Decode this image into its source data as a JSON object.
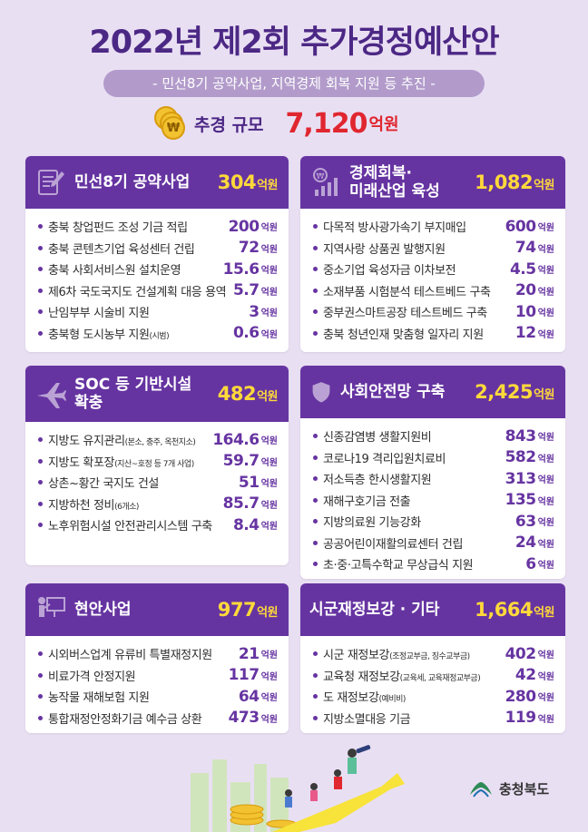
{
  "title": "2022년 제2회 추가경정예산안",
  "subtitle": "- 민선8기 공약사업, 지역경제 회복 지원 등 추진 -",
  "total": {
    "label": "추경 규모",
    "amount": "7,120",
    "unit": "억원",
    "coin_symbol": "₩"
  },
  "unit": "억원",
  "colors": {
    "primary": "#6634a1",
    "accent_yellow": "#ffd93a",
    "accent_red": "#e0262f",
    "background": "#e9dff3"
  },
  "sections": [
    {
      "title": "민선8기 공약사업",
      "amount": "304",
      "icon": "document-pen-icon",
      "items": [
        {
          "label": "충북 창업펀드 조성 기금 적립",
          "note": "",
          "value": "200"
        },
        {
          "label": "충북 콘텐츠기업 육성센터 건립",
          "note": "",
          "value": "72"
        },
        {
          "label": "충북 사회서비스원 설치운영",
          "note": "",
          "value": "15.6"
        },
        {
          "label": "제6차 국도국지도 건설계획 대응 용역",
          "note": "",
          "value": "5.7"
        },
        {
          "label": "난임부부 시술비 지원",
          "note": "",
          "value": "3"
        },
        {
          "label": "충북형 도시농부 지원",
          "note": "(시범)",
          "value": "0.6"
        }
      ]
    },
    {
      "title": "경제회복·",
      "title2": "미래산업 육성",
      "amount": "1,082",
      "icon": "growth-chart-icon",
      "items": [
        {
          "label": "다목적 방사광가속기 부지매입",
          "note": "",
          "value": "600"
        },
        {
          "label": "지역사랑 상품권 발행지원",
          "note": "",
          "value": "74"
        },
        {
          "label": "중소기업 육성자금 이차보전",
          "note": "",
          "value": "4.5"
        },
        {
          "label": "소재부품 시험분석 테스트베드 구축",
          "note": "",
          "value": "20"
        },
        {
          "label": "중부권스마트공장 테스트베드 구축",
          "note": "",
          "value": "10"
        },
        {
          "label": "충북 청년인재 맞춤형 일자리 지원",
          "note": "",
          "value": "12"
        }
      ]
    },
    {
      "title": "SOC 등 기반시설",
      "title2": "확충",
      "amount": "482",
      "icon": "airplane-icon",
      "items": [
        {
          "label": "지방도 유지관리",
          "note": "(본소, 충주, 옥천지소)",
          "value": "164.6"
        },
        {
          "label": "지방도 확포장",
          "note": "(지산~호정 등 7개 사업)",
          "value": "59.7"
        },
        {
          "label": "상촌~황간 국지도 건설",
          "note": "",
          "value": "51"
        },
        {
          "label": "지방하천 정비",
          "note": "(6개소)",
          "value": "85.7"
        },
        {
          "label": "노후위험시설 안전관리시스템 구축",
          "note": "",
          "value": "8.4"
        }
      ]
    },
    {
      "title": "사회안전망 구축",
      "amount": "2,425",
      "icon": "shield-icon",
      "items": [
        {
          "label": "신종감염병 생활지원비",
          "note": "",
          "value": "843"
        },
        {
          "label": "코로나19 격리입원치료비",
          "note": "",
          "value": "582"
        },
        {
          "label": "저소득층 한시생활지원",
          "note": "",
          "value": "313"
        },
        {
          "label": "재해구호기금 전출",
          "note": "",
          "value": "135"
        },
        {
          "label": "지방의료원 기능강화",
          "note": "",
          "value": "63"
        },
        {
          "label": "공공어린이재활의료센터 건립",
          "note": "",
          "value": "24"
        },
        {
          "label": "초·중·고특수학교 무상급식 지원",
          "note": "",
          "value": "6"
        }
      ]
    },
    {
      "title": "현안사업",
      "amount": "977",
      "icon": "presenter-board-icon",
      "items": [
        {
          "label": "시외버스업계 유류비 특별재정지원",
          "note": "",
          "value": "21"
        },
        {
          "label": "비료가격 안정지원",
          "note": "",
          "value": "117"
        },
        {
          "label": "농작물 재해보험 지원",
          "note": "",
          "value": "64"
        },
        {
          "label": "통합재정안정화기금 예수금 상환",
          "note": "",
          "value": "473"
        }
      ]
    },
    {
      "title": "시군재정보강 · 기타",
      "amount": "1,664",
      "icon": "",
      "items": [
        {
          "label": "시군 재정보강",
          "note": "(조정교부금, 징수교부금)",
          "value": "402"
        },
        {
          "label": "교육청 재정보강",
          "note": "(교육세, 교육재정교부금)",
          "value": "42"
        },
        {
          "label": "도 재정보강",
          "note": "(예비비)",
          "value": "280"
        },
        {
          "label": "지방소멸대응 기금",
          "note": "",
          "value": "119"
        }
      ]
    }
  ],
  "footer": {
    "logo_text": "충청북도"
  }
}
